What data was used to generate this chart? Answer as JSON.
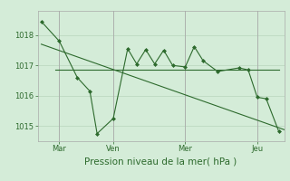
{
  "background_color": "#d4ecd8",
  "grid_color": "#b8d4bc",
  "line_color": "#2d6a2d",
  "ylim": [
    1014.5,
    1018.8
  ],
  "ylabel_ticks": [
    1015,
    1016,
    1017,
    1018
  ],
  "xlabel": "Pression niveau de la mer( hPa )",
  "xtick_labels": [
    "Mar",
    "Ven",
    "Mer",
    "Jeu"
  ],
  "xtick_positions": [
    1,
    4,
    8,
    12
  ],
  "xlim": [
    -0.2,
    13.5
  ],
  "trend_line": {
    "x": [
      0,
      13.5
    ],
    "y": [
      1017.7,
      1014.88
    ]
  },
  "flat_line": {
    "x": [
      0.8,
      13.2
    ],
    "y": [
      1016.85,
      1016.85
    ]
  },
  "zigzag_line": {
    "x": [
      0,
      1.0,
      2.0,
      2.7,
      3.1,
      4.0,
      4.8,
      5.3,
      5.8,
      6.3,
      6.8,
      7.3,
      8.0,
      8.5,
      9.0,
      9.8,
      11.0,
      11.5,
      12.0,
      12.5,
      13.2
    ],
    "y": [
      1018.45,
      1017.8,
      1016.6,
      1016.15,
      1014.75,
      1015.25,
      1017.55,
      1017.05,
      1017.52,
      1017.05,
      1017.5,
      1017.0,
      1016.95,
      1017.62,
      1017.15,
      1016.8,
      1016.92,
      1016.85,
      1015.95,
      1015.9,
      1014.82
    ]
  },
  "vline_positions": [
    1,
    4,
    8,
    12
  ],
  "marker_style": "D",
  "marker_size": 2.0,
  "line_width": 0.8,
  "tick_fontsize": 6,
  "xlabel_fontsize": 7.5
}
